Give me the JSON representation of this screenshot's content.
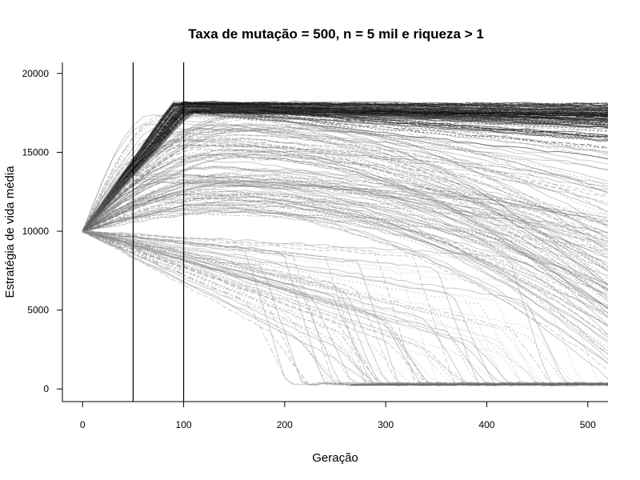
{
  "chart_data": {
    "type": "line",
    "title": "Taxa de mutação = 500, n = 5 mil e riqueza > 1",
    "xlabel": "Geração",
    "ylabel": "Estratégia de vida média",
    "xlim": [
      -20,
      520
    ],
    "ylim": [
      -800,
      20700
    ],
    "xticks": [
      0,
      100,
      200,
      300,
      400,
      500
    ],
    "yticks": [
      0,
      5000,
      10000,
      15000,
      20000
    ],
    "x_tick_labels": [
      "0",
      "100",
      "200",
      "300",
      "400",
      "500"
    ],
    "y_tick_labels": [
      "0",
      "5000",
      "10000",
      "15000",
      "20000"
    ],
    "vertical_lines": [
      50,
      100
    ],
    "start_value": 10000,
    "upper_plateau": 18000,
    "floor_value": 250,
    "line_color": "#000000",
    "reference_line_color": "#000000",
    "grid": false,
    "legend": "none",
    "series_description": "hundreds of semi-transparent grey simulation trajectories starting at 10000"
  }
}
